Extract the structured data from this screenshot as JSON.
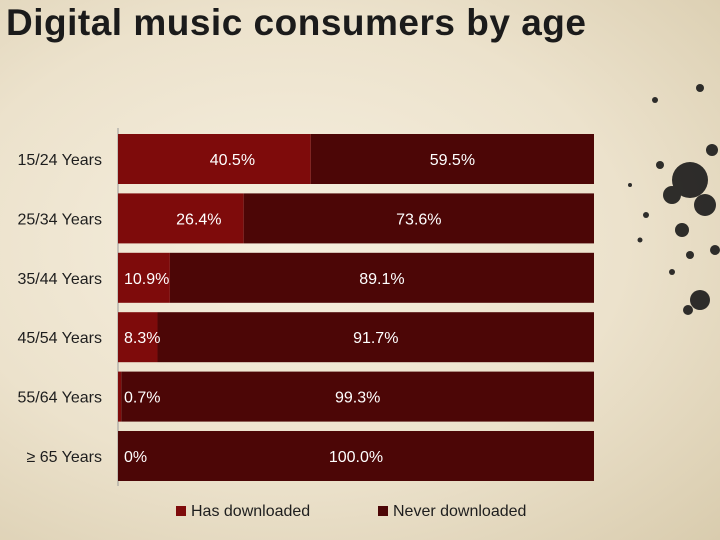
{
  "title": "Digital music consumers by age",
  "colors": {
    "has_downloaded": "#7e0b0b",
    "never_downloaded": "#4c0606",
    "background": "#efe6d2"
  },
  "chart_data": {
    "type": "bar",
    "orientation": "horizontal",
    "stacked": true,
    "title": "Digital music consumers by age",
    "categories": [
      "15/24 Years",
      "25/34 Years",
      "35/44 Years",
      "45/54 Years",
      "55/64 Years",
      "≥ 65 Years"
    ],
    "series": [
      {
        "name": "Has downloaded",
        "values": [
          40.5,
          26.4,
          10.9,
          8.3,
          0.7,
          0
        ],
        "labels": [
          "40.5%",
          "26.4%",
          "10.9%",
          "8.3%",
          "0.7%",
          "0%"
        ]
      },
      {
        "name": "Never downloaded",
        "values": [
          59.5,
          73.6,
          89.1,
          91.7,
          99.3,
          100.0
        ],
        "labels": [
          "59.5%",
          "73.6%",
          "89.1%",
          "91.7%",
          "99.3%",
          "100.0%"
        ]
      }
    ],
    "xlim": [
      0,
      100
    ],
    "grid": false,
    "legend_position": "bottom"
  }
}
